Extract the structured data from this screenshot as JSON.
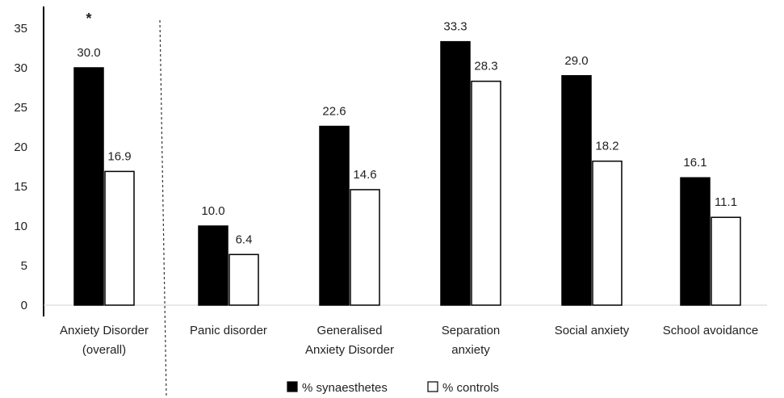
{
  "chart_data": {
    "type": "bar",
    "categories": [
      [
        "Anxiety Disorder",
        "(overall)"
      ],
      [
        "Panic disorder"
      ],
      [
        "Generalised",
        "Anxiety Disorder"
      ],
      [
        "Separation",
        "anxiety"
      ],
      [
        "Social anxiety"
      ],
      [
        "School avoidance"
      ]
    ],
    "series": [
      {
        "name": "% synaesthetes",
        "values": [
          30.0,
          10.0,
          22.6,
          33.3,
          29.0,
          16.1
        ],
        "color": "#000000",
        "value_labels": [
          "30.0",
          "10.0",
          "22.6",
          "33.3",
          "29.0",
          "16.1"
        ]
      },
      {
        "name": "% controls",
        "values": [
          16.9,
          6.4,
          14.6,
          28.3,
          18.2,
          11.1
        ],
        "color": "#ffffff",
        "value_labels": [
          "16.9",
          "6.4",
          "14.6",
          "28.3",
          "18.2",
          "11.1"
        ]
      }
    ],
    "ylim": [
      0,
      35
    ],
    "yticks": [
      0,
      5,
      10,
      15,
      20,
      25,
      30,
      35
    ],
    "title": "",
    "xlabel": "",
    "ylabel": "",
    "annotations": [
      {
        "text": "*",
        "category_index": 0
      }
    ],
    "legend": {
      "position": "bottom-center"
    },
    "grid": false,
    "separator": {
      "style": "dashed",
      "after_category_index": 0
    }
  }
}
